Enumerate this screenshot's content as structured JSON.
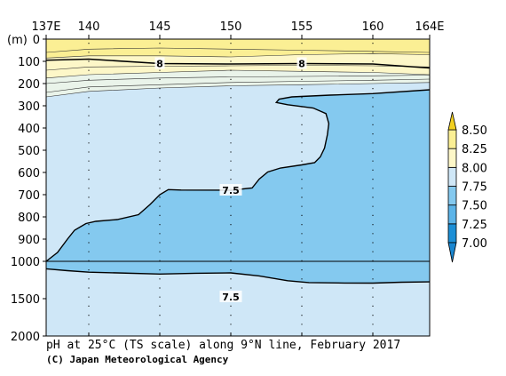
{
  "chart_data": {
    "type": "heatmap",
    "title": "pH at 25°C (TS scale) along 9°N line, February 2017",
    "credit": "(C) Japan Meteorological Agency",
    "x_ticks": [
      {
        "value": 137,
        "label": "137E"
      },
      {
        "value": 140,
        "label": "140"
      },
      {
        "value": 145,
        "label": "145"
      },
      {
        "value": 150,
        "label": "150"
      },
      {
        "value": 155,
        "label": "155"
      },
      {
        "value": 160,
        "label": "160"
      },
      {
        "value": 164,
        "label": "164E"
      }
    ],
    "xlim": [
      137,
      164
    ],
    "y_unit_label": "(m)",
    "y_ticks_upper": [
      0,
      100,
      200,
      300,
      400,
      500,
      600,
      700,
      800,
      900,
      1000
    ],
    "y_ticks_lower": [
      1500,
      2000
    ],
    "ylim": [
      0,
      2000
    ],
    "axis_break_depth": 1000,
    "colorbar": {
      "levels": [
        7.0,
        7.25,
        7.5,
        7.75,
        8.0,
        8.25,
        8.5
      ],
      "labels": [
        "7.00",
        "7.25",
        "7.50",
        "7.75",
        "8.00",
        "8.25",
        "8.50"
      ],
      "colors": [
        "#1c8fd6",
        "#5cb4e8",
        "#84c9ef",
        "#cfe7f7",
        "#fdf7c8",
        "#fbef94",
        "#f2d627"
      ]
    },
    "contour_labels": [
      {
        "text": "8",
        "lon": 145,
        "depth": 110
      },
      {
        "text": "8",
        "lon": 155,
        "depth": 110
      },
      {
        "text": "7.5",
        "lon": 150,
        "depth": 680
      },
      {
        "text": "7.5",
        "lon": 150,
        "depth": 1475
      }
    ]
  }
}
